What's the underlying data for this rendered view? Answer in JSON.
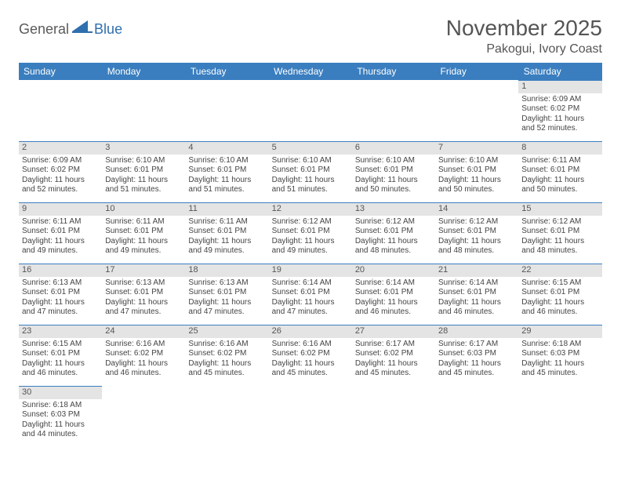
{
  "logo": {
    "general": "General",
    "blue": "Blue"
  },
  "title": "November 2025",
  "location": "Pakogui, Ivory Coast",
  "header_bg": "#3a7ebf",
  "header_fg": "#ffffff",
  "daynum_bg": "#e4e4e4",
  "rule_color": "#3a7ebf",
  "weekdays": [
    "Sunday",
    "Monday",
    "Tuesday",
    "Wednesday",
    "Thursday",
    "Friday",
    "Saturday"
  ],
  "weeks": [
    [
      {
        "n": "",
        "sr": "",
        "ss": "",
        "dl": ""
      },
      {
        "n": "",
        "sr": "",
        "ss": "",
        "dl": ""
      },
      {
        "n": "",
        "sr": "",
        "ss": "",
        "dl": ""
      },
      {
        "n": "",
        "sr": "",
        "ss": "",
        "dl": ""
      },
      {
        "n": "",
        "sr": "",
        "ss": "",
        "dl": ""
      },
      {
        "n": "",
        "sr": "",
        "ss": "",
        "dl": ""
      },
      {
        "n": "1",
        "sr": "Sunrise: 6:09 AM",
        "ss": "Sunset: 6:02 PM",
        "dl": "Daylight: 11 hours and 52 minutes."
      }
    ],
    [
      {
        "n": "2",
        "sr": "Sunrise: 6:09 AM",
        "ss": "Sunset: 6:02 PM",
        "dl": "Daylight: 11 hours and 52 minutes."
      },
      {
        "n": "3",
        "sr": "Sunrise: 6:10 AM",
        "ss": "Sunset: 6:01 PM",
        "dl": "Daylight: 11 hours and 51 minutes."
      },
      {
        "n": "4",
        "sr": "Sunrise: 6:10 AM",
        "ss": "Sunset: 6:01 PM",
        "dl": "Daylight: 11 hours and 51 minutes."
      },
      {
        "n": "5",
        "sr": "Sunrise: 6:10 AM",
        "ss": "Sunset: 6:01 PM",
        "dl": "Daylight: 11 hours and 51 minutes."
      },
      {
        "n": "6",
        "sr": "Sunrise: 6:10 AM",
        "ss": "Sunset: 6:01 PM",
        "dl": "Daylight: 11 hours and 50 minutes."
      },
      {
        "n": "7",
        "sr": "Sunrise: 6:10 AM",
        "ss": "Sunset: 6:01 PM",
        "dl": "Daylight: 11 hours and 50 minutes."
      },
      {
        "n": "8",
        "sr": "Sunrise: 6:11 AM",
        "ss": "Sunset: 6:01 PM",
        "dl": "Daylight: 11 hours and 50 minutes."
      }
    ],
    [
      {
        "n": "9",
        "sr": "Sunrise: 6:11 AM",
        "ss": "Sunset: 6:01 PM",
        "dl": "Daylight: 11 hours and 49 minutes."
      },
      {
        "n": "10",
        "sr": "Sunrise: 6:11 AM",
        "ss": "Sunset: 6:01 PM",
        "dl": "Daylight: 11 hours and 49 minutes."
      },
      {
        "n": "11",
        "sr": "Sunrise: 6:11 AM",
        "ss": "Sunset: 6:01 PM",
        "dl": "Daylight: 11 hours and 49 minutes."
      },
      {
        "n": "12",
        "sr": "Sunrise: 6:12 AM",
        "ss": "Sunset: 6:01 PM",
        "dl": "Daylight: 11 hours and 49 minutes."
      },
      {
        "n": "13",
        "sr": "Sunrise: 6:12 AM",
        "ss": "Sunset: 6:01 PM",
        "dl": "Daylight: 11 hours and 48 minutes."
      },
      {
        "n": "14",
        "sr": "Sunrise: 6:12 AM",
        "ss": "Sunset: 6:01 PM",
        "dl": "Daylight: 11 hours and 48 minutes."
      },
      {
        "n": "15",
        "sr": "Sunrise: 6:12 AM",
        "ss": "Sunset: 6:01 PM",
        "dl": "Daylight: 11 hours and 48 minutes."
      }
    ],
    [
      {
        "n": "16",
        "sr": "Sunrise: 6:13 AM",
        "ss": "Sunset: 6:01 PM",
        "dl": "Daylight: 11 hours and 47 minutes."
      },
      {
        "n": "17",
        "sr": "Sunrise: 6:13 AM",
        "ss": "Sunset: 6:01 PM",
        "dl": "Daylight: 11 hours and 47 minutes."
      },
      {
        "n": "18",
        "sr": "Sunrise: 6:13 AM",
        "ss": "Sunset: 6:01 PM",
        "dl": "Daylight: 11 hours and 47 minutes."
      },
      {
        "n": "19",
        "sr": "Sunrise: 6:14 AM",
        "ss": "Sunset: 6:01 PM",
        "dl": "Daylight: 11 hours and 47 minutes."
      },
      {
        "n": "20",
        "sr": "Sunrise: 6:14 AM",
        "ss": "Sunset: 6:01 PM",
        "dl": "Daylight: 11 hours and 46 minutes."
      },
      {
        "n": "21",
        "sr": "Sunrise: 6:14 AM",
        "ss": "Sunset: 6:01 PM",
        "dl": "Daylight: 11 hours and 46 minutes."
      },
      {
        "n": "22",
        "sr": "Sunrise: 6:15 AM",
        "ss": "Sunset: 6:01 PM",
        "dl": "Daylight: 11 hours and 46 minutes."
      }
    ],
    [
      {
        "n": "23",
        "sr": "Sunrise: 6:15 AM",
        "ss": "Sunset: 6:01 PM",
        "dl": "Daylight: 11 hours and 46 minutes."
      },
      {
        "n": "24",
        "sr": "Sunrise: 6:16 AM",
        "ss": "Sunset: 6:02 PM",
        "dl": "Daylight: 11 hours and 46 minutes."
      },
      {
        "n": "25",
        "sr": "Sunrise: 6:16 AM",
        "ss": "Sunset: 6:02 PM",
        "dl": "Daylight: 11 hours and 45 minutes."
      },
      {
        "n": "26",
        "sr": "Sunrise: 6:16 AM",
        "ss": "Sunset: 6:02 PM",
        "dl": "Daylight: 11 hours and 45 minutes."
      },
      {
        "n": "27",
        "sr": "Sunrise: 6:17 AM",
        "ss": "Sunset: 6:02 PM",
        "dl": "Daylight: 11 hours and 45 minutes."
      },
      {
        "n": "28",
        "sr": "Sunrise: 6:17 AM",
        "ss": "Sunset: 6:03 PM",
        "dl": "Daylight: 11 hours and 45 minutes."
      },
      {
        "n": "29",
        "sr": "Sunrise: 6:18 AM",
        "ss": "Sunset: 6:03 PM",
        "dl": "Daylight: 11 hours and 45 minutes."
      }
    ],
    [
      {
        "n": "30",
        "sr": "Sunrise: 6:18 AM",
        "ss": "Sunset: 6:03 PM",
        "dl": "Daylight: 11 hours and 44 minutes."
      },
      {
        "n": "",
        "sr": "",
        "ss": "",
        "dl": ""
      },
      {
        "n": "",
        "sr": "",
        "ss": "",
        "dl": ""
      },
      {
        "n": "",
        "sr": "",
        "ss": "",
        "dl": ""
      },
      {
        "n": "",
        "sr": "",
        "ss": "",
        "dl": ""
      },
      {
        "n": "",
        "sr": "",
        "ss": "",
        "dl": ""
      },
      {
        "n": "",
        "sr": "",
        "ss": "",
        "dl": ""
      }
    ]
  ]
}
